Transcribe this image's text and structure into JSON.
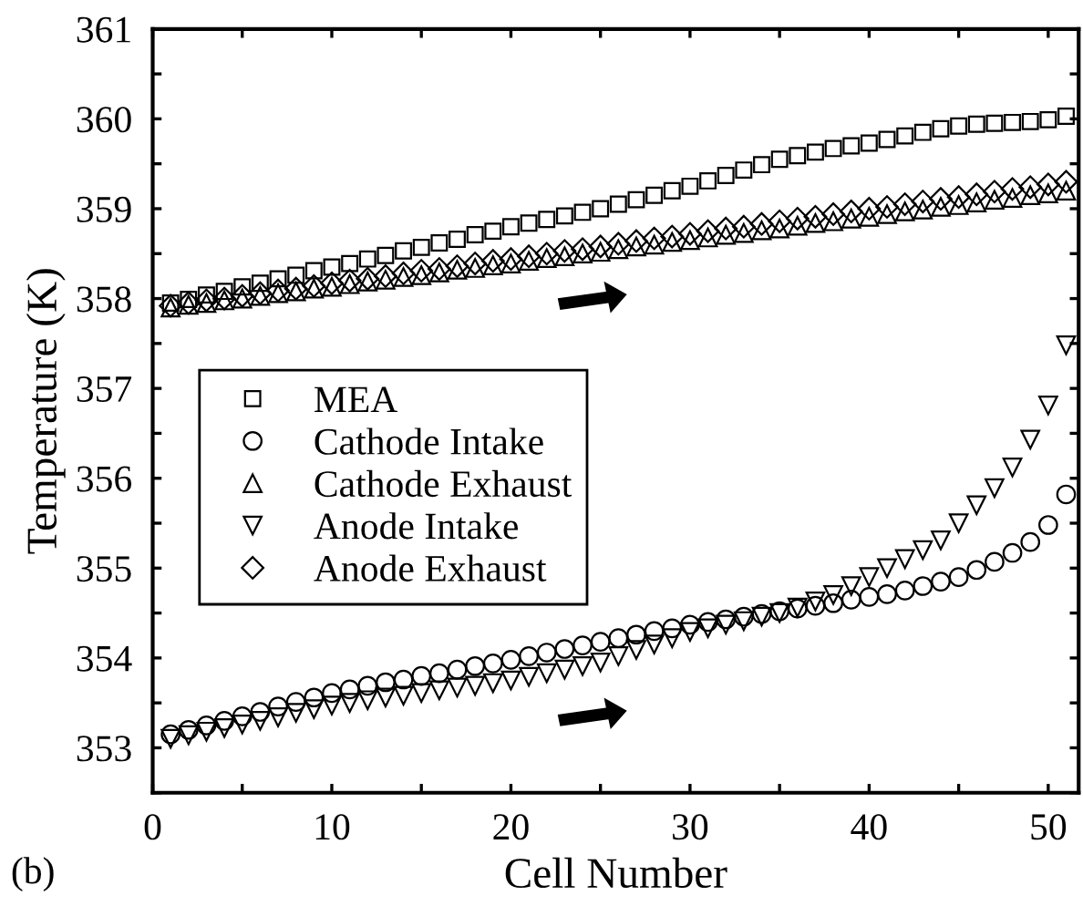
{
  "chart_data": {
    "type": "scatter",
    "xlabel": "Cell Number",
    "ylabel": "Temperature (K)",
    "annotations": [
      "(b)"
    ],
    "x": [
      1,
      2,
      3,
      4,
      5,
      6,
      7,
      8,
      9,
      10,
      11,
      12,
      13,
      14,
      15,
      16,
      17,
      18,
      19,
      20,
      21,
      22,
      23,
      24,
      25,
      26,
      27,
      28,
      29,
      30,
      31,
      32,
      33,
      34,
      35,
      36,
      37,
      38,
      39,
      40,
      41,
      42,
      43,
      44,
      45,
      46,
      47,
      48,
      49,
      50,
      51
    ],
    "xlim": [
      0,
      51.7
    ],
    "xticks": [
      0,
      {
        "value": 5,
        "label": null
      },
      10,
      {
        "value": 15,
        "label": null
      },
      20,
      {
        "value": 25,
        "label": null
      },
      30,
      {
        "value": 35,
        "label": null
      },
      40,
      {
        "value": 45,
        "label": null
      },
      50
    ],
    "ylim": [
      352.5,
      361
    ],
    "yticks": [
      {
        "value": 352.5,
        "label": null
      },
      353,
      {
        "value": 353.5,
        "label": null
      },
      354,
      {
        "value": 354.5,
        "label": null
      },
      355,
      {
        "value": 355.5,
        "label": null
      },
      356,
      {
        "value": 356.5,
        "label": null
      },
      357,
      {
        "value": 357.5,
        "label": null
      },
      358,
      {
        "value": 358.5,
        "label": null
      },
      359,
      {
        "value": 359.5,
        "label": null
      },
      360,
      {
        "value": 360.5,
        "label": null
      },
      361
    ],
    "grid": false,
    "legend": "left",
    "series": [
      {
        "name": "MEA",
        "color": "#000000",
        "marker": "square",
        "values": [
          357.95,
          357.99,
          358.04,
          358.08,
          358.13,
          358.17,
          358.22,
          358.26,
          358.31,
          358.35,
          358.39,
          358.44,
          358.48,
          358.53,
          358.57,
          358.62,
          358.66,
          358.71,
          358.75,
          358.8,
          358.84,
          358.88,
          358.92,
          358.96,
          359.0,
          359.05,
          359.1,
          359.15,
          359.2,
          359.25,
          359.31,
          359.37,
          359.43,
          359.49,
          359.55,
          359.59,
          359.63,
          359.67,
          359.7,
          359.73,
          359.77,
          359.81,
          359.85,
          359.89,
          359.92,
          359.94,
          359.95,
          359.96,
          359.97,
          359.99,
          360.03
        ]
      },
      {
        "name": "Cathode Intake",
        "color": "#000000",
        "marker": "circle",
        "values": [
          353.15,
          353.2,
          353.25,
          353.3,
          353.35,
          353.4,
          353.46,
          353.51,
          353.56,
          353.61,
          353.65,
          353.69,
          353.73,
          353.76,
          353.8,
          353.83,
          353.87,
          353.91,
          353.94,
          353.98,
          354.02,
          354.06,
          354.1,
          354.14,
          354.18,
          354.22,
          354.26,
          354.3,
          354.33,
          354.37,
          354.4,
          354.43,
          354.46,
          354.49,
          354.52,
          354.55,
          354.58,
          354.61,
          354.65,
          354.68,
          354.71,
          354.75,
          354.8,
          354.85,
          354.9,
          354.98,
          355.07,
          355.17,
          355.29,
          355.48,
          355.82
        ]
      },
      {
        "name": "Cathode Exhaust",
        "color": "#000000",
        "marker": "triangle",
        "values": [
          357.9,
          357.93,
          357.95,
          357.98,
          358.0,
          358.03,
          358.06,
          358.08,
          358.11,
          358.13,
          358.16,
          358.19,
          358.21,
          358.24,
          358.26,
          358.29,
          358.32,
          358.34,
          358.37,
          358.39,
          358.42,
          358.45,
          358.47,
          358.5,
          358.52,
          358.55,
          358.58,
          358.6,
          358.63,
          358.65,
          358.68,
          358.71,
          358.73,
          358.76,
          358.78,
          358.81,
          358.84,
          358.86,
          358.89,
          358.91,
          358.94,
          358.97,
          358.99,
          359.02,
          359.04,
          359.07,
          359.1,
          359.12,
          359.15,
          359.17,
          359.2
        ]
      },
      {
        "name": "Anode Intake",
        "color": "#000000",
        "marker": "triangle_down",
        "values": [
          353.1,
          353.14,
          353.18,
          353.22,
          353.26,
          353.3,
          353.34,
          353.39,
          353.43,
          353.47,
          353.5,
          353.53,
          353.56,
          353.58,
          353.61,
          353.64,
          353.67,
          353.69,
          353.72,
          353.75,
          353.79,
          353.83,
          353.87,
          353.91,
          353.95,
          354.02,
          354.09,
          354.15,
          354.22,
          354.29,
          354.33,
          354.37,
          354.41,
          354.46,
          354.5,
          354.56,
          354.63,
          354.7,
          354.8,
          354.9,
          355.0,
          355.1,
          355.2,
          355.31,
          355.5,
          355.7,
          355.89,
          356.12,
          356.43,
          356.81,
          357.48
        ]
      },
      {
        "name": "Anode Exhaust",
        "color": "#000000",
        "marker": "diamond",
        "values": [
          357.92,
          357.95,
          357.98,
          358.0,
          358.03,
          358.06,
          358.09,
          358.11,
          358.14,
          358.17,
          358.2,
          358.22,
          358.25,
          358.28,
          358.31,
          358.33,
          358.36,
          358.39,
          358.42,
          358.44,
          358.47,
          358.5,
          358.53,
          358.55,
          358.58,
          358.61,
          358.64,
          358.67,
          358.69,
          358.72,
          358.75,
          358.78,
          358.8,
          358.83,
          358.86,
          358.89,
          358.91,
          358.94,
          358.97,
          359.0,
          359.02,
          359.05,
          359.08,
          359.11,
          359.13,
          359.16,
          359.19,
          359.22,
          359.24,
          359.27,
          359.3
        ]
      }
    ]
  }
}
